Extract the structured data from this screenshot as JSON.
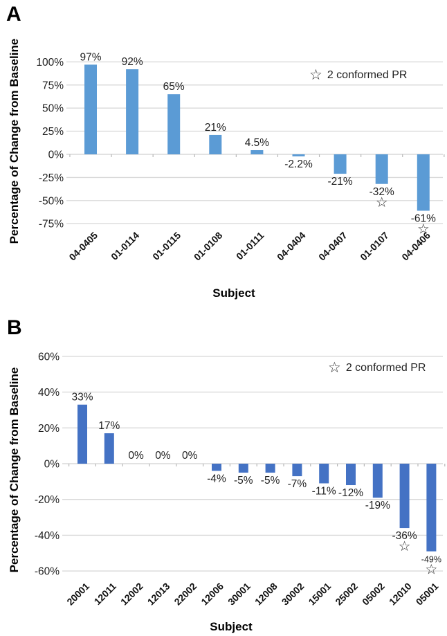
{
  "figure": {
    "background": "#ffffff"
  },
  "chart_data": [
    {
      "type": "bar",
      "panel_letter": "A",
      "ylabel": "Percentage of Change from Baseline",
      "xlabel": "Subject",
      "legend": {
        "symbol": "☆",
        "label": "2 conformed PR",
        "position": "top-right"
      },
      "bar_color": "#5B9BD5",
      "gridline_color": "#D9D9D9",
      "grid": true,
      "categories": [
        "04-0405",
        "01-0114",
        "01-0115",
        "01-0108",
        "01-0111",
        "04-0404",
        "04-0407",
        "01-0107",
        "04-0406"
      ],
      "values": [
        97,
        92,
        65,
        21,
        4.5,
        -2.2,
        -21,
        -32,
        -61
      ],
      "value_labels": [
        "97%",
        "92%",
        "65%",
        "21%",
        "4.5%",
        "-2.2%",
        "-21%",
        "-32%",
        "-61%"
      ],
      "starred": [
        false,
        false,
        false,
        false,
        false,
        false,
        false,
        true,
        true
      ],
      "yticks": [
        100,
        75,
        50,
        25,
        0,
        -25,
        -50,
        -75
      ],
      "ytick_labels": [
        "100%",
        "75%",
        "50%",
        "25%",
        "0%",
        "-25%",
        "-50%",
        "-75%"
      ],
      "ylim": [
        -87,
        110
      ]
    },
    {
      "type": "bar",
      "panel_letter": "B",
      "ylabel": "Percentage of Change from Baseline",
      "xlabel": "Subject",
      "legend": {
        "symbol": "☆",
        "label": "2 conformed PR",
        "position": "top-right"
      },
      "bar_color": "#4472C4",
      "gridline_color": "#D9D9D9",
      "grid": true,
      "categories": [
        "20001",
        "12011",
        "12002",
        "12013",
        "22002",
        "12006",
        "30001",
        "12008",
        "30002",
        "15001",
        "25002",
        "05002",
        "12010",
        "05001"
      ],
      "values": [
        33,
        17,
        0,
        0,
        0,
        -4,
        -5,
        -5,
        -7,
        -11,
        -12,
        -19,
        -36,
        -49
      ],
      "value_labels": [
        "33%",
        "17%",
        "0%",
        "0%",
        "0%",
        "-4%",
        "-5%",
        "-5%",
        "-7%",
        "-11%",
        "-12%",
        "-19%",
        "-36%",
        "-49%"
      ],
      "starred": [
        false,
        false,
        false,
        false,
        false,
        false,
        false,
        false,
        false,
        false,
        false,
        false,
        true,
        true
      ],
      "yticks": [
        60,
        40,
        20,
        0,
        -20,
        -40,
        -60
      ],
      "ytick_labels": [
        "60%",
        "40%",
        "20%",
        "0%",
        "-20%",
        "-40%",
        "-60%"
      ],
      "ylim": [
        -66,
        66
      ]
    }
  ]
}
